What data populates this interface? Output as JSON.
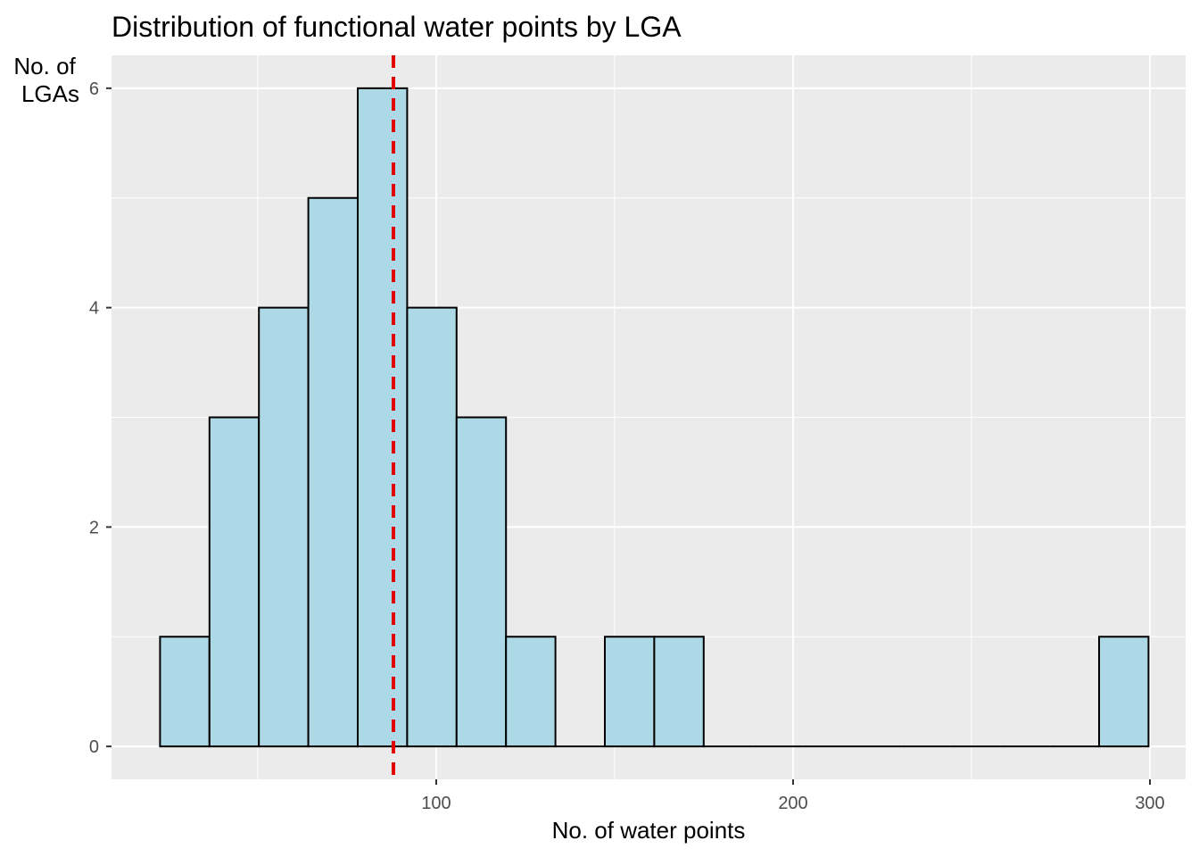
{
  "chart_data": {
    "type": "bar",
    "title": "Distribution of functional water points by LGA",
    "xlabel": "No. of water points",
    "ylabel_lines": [
      "No. of",
      "LGAs"
    ],
    "xlim": [
      9,
      310
    ],
    "ylim": [
      -0.3,
      6.3
    ],
    "x_ticks": [
      100,
      200,
      300
    ],
    "y_ticks": [
      0,
      2,
      4,
      6
    ],
    "bin_width": 13.85,
    "bins": [
      {
        "start": 22.6,
        "count": 1
      },
      {
        "start": 36.45,
        "count": 3
      },
      {
        "start": 50.3,
        "count": 4
      },
      {
        "start": 64.15,
        "count": 5
      },
      {
        "start": 78.0,
        "count": 6
      },
      {
        "start": 91.85,
        "count": 4
      },
      {
        "start": 105.7,
        "count": 3
      },
      {
        "start": 119.55,
        "count": 1
      },
      {
        "start": 133.4,
        "count": 0
      },
      {
        "start": 147.25,
        "count": 1
      },
      {
        "start": 161.1,
        "count": 1
      },
      {
        "start": 174.95,
        "count": 0
      },
      {
        "start": 188.8,
        "count": 0
      },
      {
        "start": 202.65,
        "count": 0
      },
      {
        "start": 216.5,
        "count": 0
      },
      {
        "start": 230.35,
        "count": 0
      },
      {
        "start": 244.2,
        "count": 0
      },
      {
        "start": 258.05,
        "count": 0
      },
      {
        "start": 271.9,
        "count": 0
      },
      {
        "start": 285.75,
        "count": 1
      }
    ],
    "mean_line": {
      "x": 88,
      "style": "dashed",
      "color": "#e00000"
    },
    "bar_fill": "#add8e6",
    "bar_outline": "#000000",
    "panel_background": "#ebebeb",
    "grid": true,
    "legend": "none"
  }
}
